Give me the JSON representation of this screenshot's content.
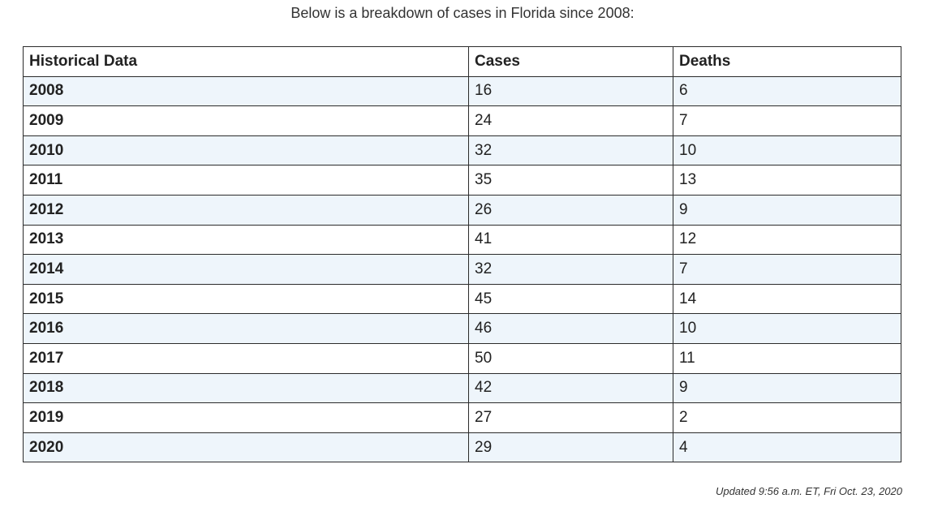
{
  "intro_text": "Below is a breakdown of cases in Florida since 2008:",
  "table": {
    "headers": [
      "Historical Data",
      "Cases",
      "Deaths"
    ],
    "rows": [
      {
        "year": "2008",
        "cases": "16",
        "deaths": "6"
      },
      {
        "year": "2009",
        "cases": "24",
        "deaths": "7"
      },
      {
        "year": "2010",
        "cases": "32",
        "deaths": "10"
      },
      {
        "year": "2011",
        "cases": "35",
        "deaths": "13"
      },
      {
        "year": "2012",
        "cases": "26",
        "deaths": "9"
      },
      {
        "year": "2013",
        "cases": "41",
        "deaths": "12"
      },
      {
        "year": "2014",
        "cases": "32",
        "deaths": "7"
      },
      {
        "year": "2015",
        "cases": "45",
        "deaths": "14"
      },
      {
        "year": "2016",
        "cases": "46",
        "deaths": "10"
      },
      {
        "year": "2017",
        "cases": "50",
        "deaths": "11"
      },
      {
        "year": "2018",
        "cases": "42",
        "deaths": "9"
      },
      {
        "year": "2019",
        "cases": "27",
        "deaths": "2"
      },
      {
        "year": "2020",
        "cases": "29",
        "deaths": "4"
      }
    ]
  },
  "updated_text": "Updated 9:56 a.m. ET, Fri Oct. 23, 2020",
  "colors": {
    "stripe": "#eef5fb",
    "border": "#2b2b2b"
  }
}
